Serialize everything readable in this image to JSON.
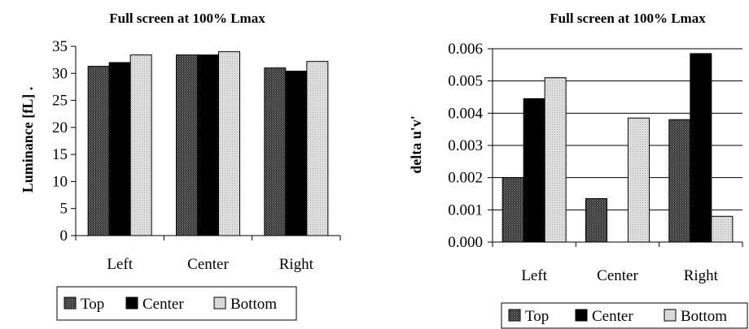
{
  "chart_data": [
    {
      "type": "bar",
      "title": "Full screen at 100%  Lmax",
      "ylabel": "Luminance [fL] .",
      "xlabel": "",
      "categories": [
        "Left",
        "Center",
        "Right"
      ],
      "ylim": [
        0,
        35
      ],
      "yticks": [
        "0",
        "5",
        "10",
        "15",
        "20",
        "25",
        "30",
        "35"
      ],
      "grid": false,
      "legend_position": "bottom",
      "series": [
        {
          "name": "Top",
          "values": [
            31.3,
            33.4,
            31.0
          ]
        },
        {
          "name": "Center",
          "values": [
            32.0,
            33.4,
            30.4
          ]
        },
        {
          "name": "Bottom",
          "values": [
            33.4,
            34.0,
            32.2
          ]
        }
      ]
    },
    {
      "type": "bar",
      "title": "Full screen at 100%  Lmax",
      "ylabel": "delta u'v'",
      "xlabel": "",
      "categories": [
        "Left",
        "Center",
        "Right"
      ],
      "ylim": [
        0,
        0.006
      ],
      "yticks": [
        "0.000",
        "0.001",
        "0.002",
        "0.003",
        "0.004",
        "0.005",
        "0.006"
      ],
      "grid": true,
      "legend_position": "bottom",
      "series": [
        {
          "name": "Top",
          "values": [
            0.002,
            0.00135,
            0.0038
          ]
        },
        {
          "name": "Center",
          "values": [
            0.00445,
            0.0,
            0.00585
          ]
        },
        {
          "name": "Bottom",
          "values": [
            0.0051,
            0.00385,
            0.0008
          ]
        }
      ]
    }
  ],
  "series_styles": [
    {
      "name": "Top",
      "pattern": "dark-hatch"
    },
    {
      "name": "Center",
      "pattern": "solid-black"
    },
    {
      "name": "Bottom",
      "pattern": "light-dots"
    }
  ]
}
